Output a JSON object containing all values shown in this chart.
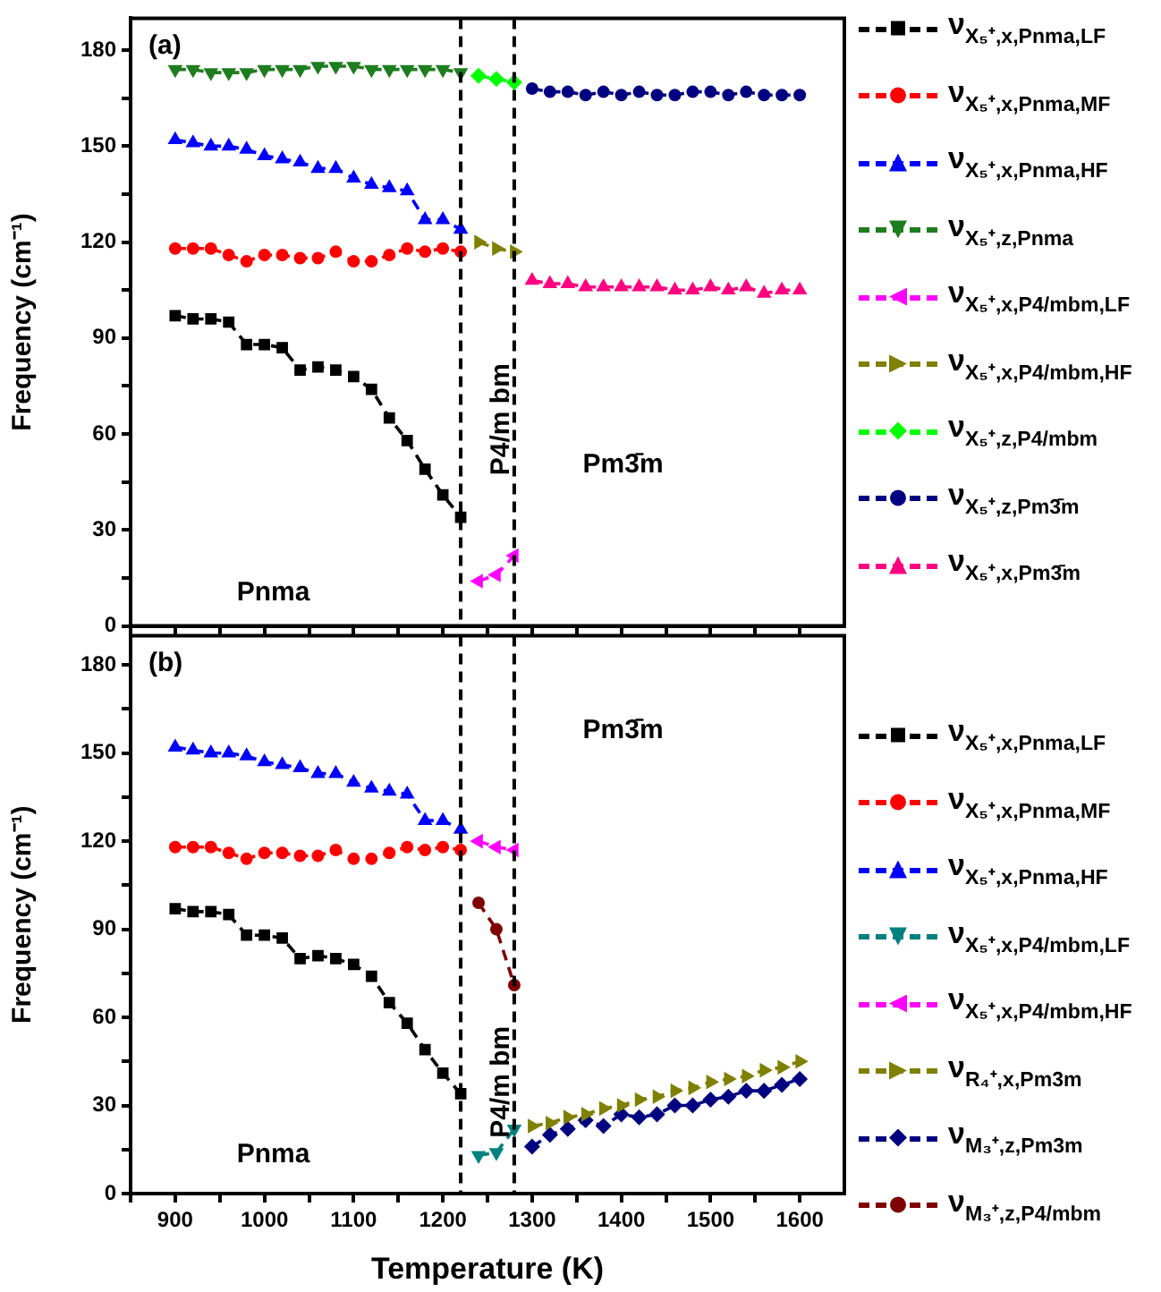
{
  "chart_data": [
    {
      "type": "line",
      "ylabel": "Frequency (cm⁻¹)",
      "xlim": [
        850,
        1650
      ],
      "ylim": [
        0,
        190
      ],
      "xticks": [
        {
          "value": 850,
          "label": null
        },
        900,
        {
          "value": 950,
          "label": null
        },
        1000,
        {
          "value": 1050,
          "label": null
        },
        1100,
        {
          "value": 1150,
          "label": null
        },
        1200,
        {
          "value": 1250,
          "label": null
        },
        1300,
        {
          "value": 1350,
          "label": null
        },
        1400,
        {
          "value": 1450,
          "label": null
        },
        1500,
        {
          "value": 1550,
          "label": null
        },
        1600
      ],
      "yticks": [
        0,
        {
          "value": 15,
          "label": null
        },
        30,
        {
          "value": 45,
          "label": null
        },
        60,
        {
          "value": 75,
          "label": null
        },
        90,
        {
          "value": 105,
          "label": null
        },
        120,
        {
          "value": 135,
          "label": null
        },
        150,
        {
          "value": 165,
          "label": null
        },
        180
      ],
      "tick_labels": "y",
      "grid": false,
      "legend": "right",
      "line_style": "dashed",
      "series": [
        {
          "name": "ν$_{X₅⁺,x,Pnma,LF}$",
          "color": "#000000",
          "marker": "square",
          "x": [
            900,
            920,
            940,
            960,
            980,
            1000,
            1020,
            1040,
            1060,
            1080,
            1100,
            1120,
            1140,
            1160,
            1180,
            1200,
            1220
          ],
          "values": [
            97,
            96,
            96,
            95,
            88,
            88,
            87,
            80,
            81,
            80,
            78,
            74,
            65,
            58,
            49,
            41,
            34
          ]
        },
        {
          "name": "ν$_{X₅⁺,x,Pnma,MF}$",
          "color": "#ff0000",
          "marker": "circle",
          "x": [
            900,
            920,
            940,
            960,
            980,
            1000,
            1020,
            1040,
            1060,
            1080,
            1100,
            1120,
            1140,
            1160,
            1180,
            1200,
            1220
          ],
          "values": [
            118,
            118,
            118,
            116,
            114,
            116,
            116,
            115,
            115,
            117,
            114,
            114,
            116,
            118,
            117,
            118,
            117
          ]
        },
        {
          "name": "ν$_{X₅⁺,x,Pnma,HF}$",
          "color": "#0000ff",
          "marker": "triangle",
          "x": [
            900,
            920,
            940,
            960,
            980,
            1000,
            1020,
            1040,
            1060,
            1080,
            1100,
            1120,
            1140,
            1160,
            1180,
            1200,
            1220
          ],
          "values": [
            152,
            151,
            150,
            150,
            149,
            147,
            146,
            145,
            143,
            143,
            140,
            138,
            137,
            136,
            127,
            127,
            124
          ]
        },
        {
          "name": "ν$_{X₅⁺,z,Pnma}$",
          "color": "#1e7d1e",
          "marker": "triangle-down",
          "x": [
            900,
            920,
            940,
            960,
            980,
            1000,
            1020,
            1040,
            1060,
            1080,
            1100,
            1120,
            1140,
            1160,
            1180,
            1200,
            1220
          ],
          "values": [
            174,
            174,
            173,
            173,
            173,
            174,
            174,
            174,
            175,
            175,
            175,
            174,
            174,
            174,
            174,
            174,
            173
          ]
        },
        {
          "name": "ν$_{X₅⁺,x,P4/mbm,LF}$",
          "color": "#ff00ff",
          "marker": "triangle-left",
          "x": [
            1240,
            1260,
            1280
          ],
          "values": [
            14,
            16,
            22
          ]
        },
        {
          "name": "ν$_{X₅⁺,x,P4/mbm,HF}$",
          "color": "#808000",
          "marker": "triangle-right",
          "x": [
            1240,
            1260,
            1280
          ],
          "values": [
            120,
            118,
            117
          ]
        },
        {
          "name": "ν$_{X₅⁺,z,P4/mbm}$",
          "color": "#00ff00",
          "marker": "diamond",
          "x": [
            1240,
            1260,
            1280
          ],
          "values": [
            172,
            171,
            170
          ]
        },
        {
          "name": "ν$_{X₅⁺,z,Pm3̄m}$",
          "color": "#000080",
          "marker": "circle",
          "x": [
            1300,
            1320,
            1340,
            1360,
            1380,
            1400,
            1420,
            1440,
            1460,
            1480,
            1500,
            1520,
            1540,
            1560,
            1580,
            1600
          ],
          "values": [
            168,
            167,
            167,
            166,
            167,
            166,
            167,
            166,
            166,
            167,
            167,
            166,
            167,
            166,
            166,
            166
          ]
        },
        {
          "name": "ν$_{X₅⁺,x,Pm3̄m}$",
          "color": "#ff0080",
          "marker": "triangle",
          "x": [
            1300,
            1320,
            1340,
            1360,
            1380,
            1400,
            1420,
            1440,
            1460,
            1480,
            1500,
            1520,
            1540,
            1560,
            1580,
            1600
          ],
          "values": [
            108,
            107,
            107,
            106,
            106,
            106,
            106,
            106,
            105,
            105,
            106,
            105,
            106,
            104,
            105,
            105
          ]
        }
      ],
      "ref_lines": [
        {
          "axis": "x",
          "value": 1220,
          "color": "#000000",
          "line_style": "dashed"
        },
        {
          "axis": "x",
          "value": 1280,
          "color": "#000000",
          "line_style": "dashed"
        }
      ],
      "annotations": [
        "(a)",
        "Pnma",
        "P4/m bm",
        "Pm3̄m"
      ]
    },
    {
      "type": "line",
      "xlabel": "Temperature (K)",
      "ylabel": "Frequency (cm⁻¹)",
      "xlim": [
        850,
        1650
      ],
      "ylim": [
        0,
        190
      ],
      "xticks": [
        {
          "value": 850,
          "label": null
        },
        900,
        {
          "value": 950,
          "label": null
        },
        1000,
        {
          "value": 1050,
          "label": null
        },
        1100,
        {
          "value": 1150,
          "label": null
        },
        1200,
        {
          "value": 1250,
          "label": null
        },
        1300,
        {
          "value": 1350,
          "label": null
        },
        1400,
        {
          "value": 1450,
          "label": null
        },
        1500,
        {
          "value": 1550,
          "label": null
        },
        1600
      ],
      "yticks": [
        0,
        {
          "value": 15,
          "label": null
        },
        30,
        {
          "value": 45,
          "label": null
        },
        60,
        {
          "value": 75,
          "label": null
        },
        90,
        {
          "value": 105,
          "label": null
        },
        120,
        {
          "value": 135,
          "label": null
        },
        150,
        {
          "value": 165,
          "label": null
        },
        180
      ],
      "grid": false,
      "legend": "right",
      "line_style": "dashed",
      "series": [
        {
          "name": "ν$_{X₅⁺,x,Pnma,LF}$",
          "color": "#000000",
          "marker": "square",
          "x": [
            900,
            920,
            940,
            960,
            980,
            1000,
            1020,
            1040,
            1060,
            1080,
            1100,
            1120,
            1140,
            1160,
            1180,
            1200,
            1220
          ],
          "values": [
            97,
            96,
            96,
            95,
            88,
            88,
            87,
            80,
            81,
            80,
            78,
            74,
            65,
            58,
            49,
            41,
            34
          ]
        },
        {
          "name": "ν$_{X₅⁺,x,Pnma,MF}$",
          "color": "#ff0000",
          "marker": "circle",
          "x": [
            900,
            920,
            940,
            960,
            980,
            1000,
            1020,
            1040,
            1060,
            1080,
            1100,
            1120,
            1140,
            1160,
            1180,
            1200,
            1220
          ],
          "values": [
            118,
            118,
            118,
            116,
            114,
            116,
            116,
            115,
            115,
            117,
            114,
            114,
            116,
            118,
            117,
            118,
            117
          ]
        },
        {
          "name": "ν$_{X₅⁺,x,Pnma,HF}$",
          "color": "#0000ff",
          "marker": "triangle",
          "x": [
            900,
            920,
            940,
            960,
            980,
            1000,
            1020,
            1040,
            1060,
            1080,
            1100,
            1120,
            1140,
            1160,
            1180,
            1200,
            1220
          ],
          "values": [
            152,
            151,
            150,
            150,
            149,
            147,
            146,
            145,
            143,
            143,
            140,
            138,
            137,
            136,
            127,
            127,
            124
          ]
        },
        {
          "name": "ν$_{X₅⁺,x,P4/mbm,LF}$",
          "color": "#008080",
          "marker": "triangle-down",
          "x": [
            1240,
            1260,
            1280
          ],
          "values": [
            13,
            14,
            22
          ]
        },
        {
          "name": "ν$_{X₅⁺,x,P4/mbm,HF}$",
          "color": "#ff00ff",
          "marker": "triangle-left",
          "x": [
            1240,
            1260,
            1280
          ],
          "values": [
            120,
            118,
            117
          ]
        },
        {
          "name": "ν$_{R₄⁺,x,Pm3m}$",
          "color": "#808000",
          "marker": "triangle-right",
          "x": [
            1300,
            1320,
            1340,
            1360,
            1380,
            1400,
            1420,
            1440,
            1460,
            1480,
            1500,
            1520,
            1540,
            1560,
            1580,
            1600
          ],
          "values": [
            23,
            24,
            26,
            27,
            29,
            30,
            32,
            33,
            35,
            36,
            38,
            39,
            40,
            42,
            43,
            45
          ]
        },
        {
          "name": "ν$_{M₃⁺,z,Pm3m}$",
          "color": "#000080",
          "marker": "diamond",
          "x": [
            1300,
            1320,
            1340,
            1360,
            1380,
            1400,
            1420,
            1440,
            1460,
            1480,
            1500,
            1520,
            1540,
            1560,
            1580,
            1600
          ],
          "values": [
            16,
            20,
            22,
            25,
            23,
            27,
            26,
            27,
            30,
            30,
            32,
            33,
            35,
            35,
            37,
            39
          ]
        },
        {
          "name": "ν$_{M₃⁺,z,P4/mbm}$",
          "color": "#800000",
          "marker": "circle",
          "x": [
            1240,
            1260,
            1280
          ],
          "values": [
            99,
            90,
            71
          ]
        }
      ],
      "ref_lines": [
        {
          "axis": "x",
          "value": 1220,
          "color": "#000000",
          "line_style": "dashed"
        },
        {
          "axis": "x",
          "value": 1280,
          "color": "#000000",
          "line_style": "dashed"
        }
      ],
      "annotations": [
        "(b)",
        "Pnma",
        "P4/m bm",
        "Pm3̄m"
      ]
    }
  ]
}
